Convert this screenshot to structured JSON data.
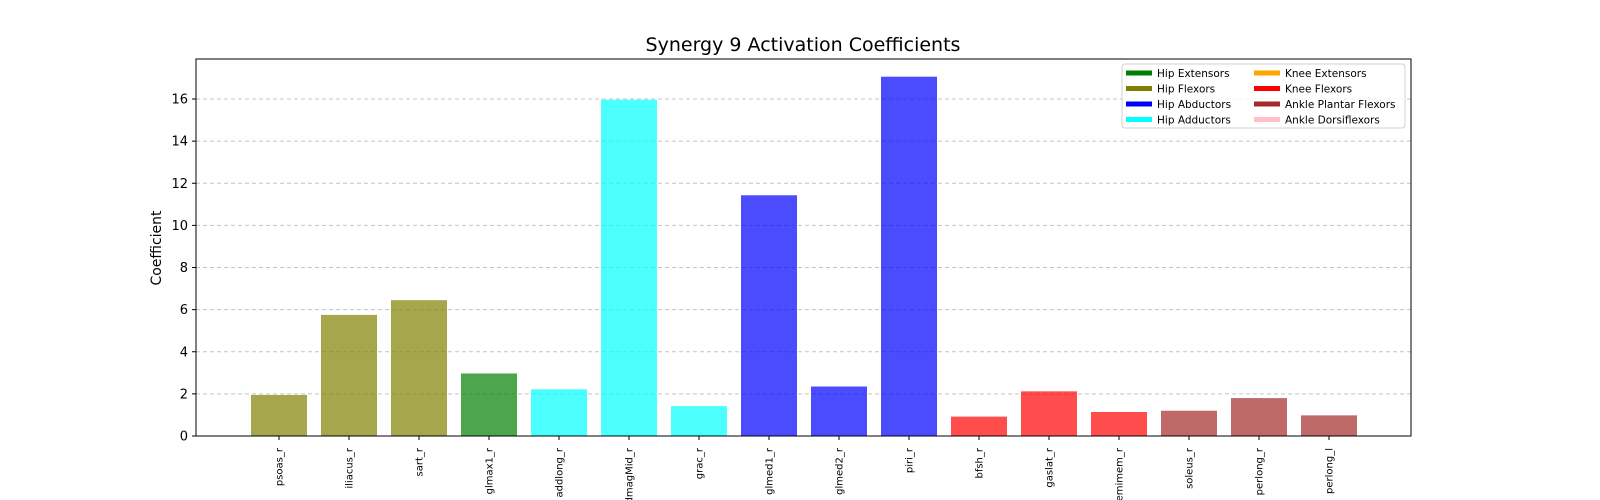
{
  "chart_data": {
    "type": "bar",
    "title": "Synergy 9 Activation Coefficients",
    "xlabel": "",
    "ylabel": "Coefficient",
    "ylim": [
      0,
      17.9
    ],
    "yticks": [
      0,
      2,
      4,
      6,
      8,
      10,
      12,
      14,
      16
    ],
    "grid": "y dashed",
    "legend_position": "top-right",
    "categories": [
      "psoas_r",
      "iliacus_r",
      "sart_r",
      "glmax1_r",
      "addlong_r",
      "addmagMid_r",
      "grac_r",
      "glmed1_r",
      "glmed2_r",
      "piri_r",
      "bfsh_r",
      "gaslat_r",
      "semimem_r",
      "soleus_r",
      "perlong_r",
      "perlong_l"
    ],
    "category_groups": [
      "Hip Flexors",
      "Hip Flexors",
      "Hip Flexors",
      "Hip Extensors",
      "Hip Adductors",
      "Hip Adductors",
      "Hip Adductors",
      "Hip Abductors",
      "Hip Abductors",
      "Hip Abductors",
      "Knee Flexors",
      "Knee Flexors",
      "Knee Flexors",
      "Ankle Plantar Flexors",
      "Ankle Plantar Flexors",
      "Ankle Plantar Flexors"
    ],
    "values": [
      1.95,
      5.75,
      6.45,
      2.97,
      2.22,
      15.97,
      1.42,
      11.43,
      2.35,
      17.06,
      0.92,
      2.12,
      1.14,
      1.2,
      1.8,
      0.98
    ],
    "legend": [
      {
        "name": "Hip Extensors",
        "color": "#008000"
      },
      {
        "name": "Hip Flexors",
        "color": "#808000"
      },
      {
        "name": "Hip Abductors",
        "color": "#0000ff"
      },
      {
        "name": "Hip Adductors",
        "color": "#00ffff"
      },
      {
        "name": "Knee Extensors",
        "color": "#ffa500"
      },
      {
        "name": "Knee Flexors",
        "color": "#ff0000"
      },
      {
        "name": "Ankle Plantar Flexors",
        "color": "#a52a2a"
      },
      {
        "name": "Ankle Dorsiflexors",
        "color": "#ffc0cb"
      }
    ],
    "bar_opacity": 0.7
  }
}
